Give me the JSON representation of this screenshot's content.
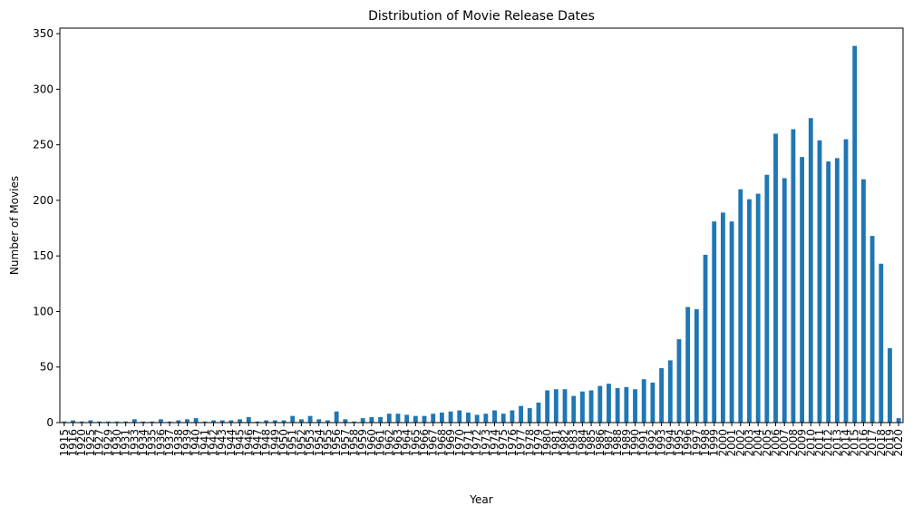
{
  "chart_data": {
    "type": "bar",
    "title": "Distribution of Movie Release Dates",
    "xlabel": "Year",
    "ylabel": "Number of Movies",
    "ylim": [
      0,
      355
    ],
    "yticks": [
      0,
      50,
      100,
      150,
      200,
      250,
      300,
      350
    ],
    "grid": false,
    "legend": "none",
    "bar_color": "#1f77b4",
    "categories": [
      "1915",
      "1916",
      "1920",
      "1925",
      "1927",
      "1929",
      "1930",
      "1931",
      "1933",
      "1934",
      "1935",
      "1936",
      "1937",
      "1938",
      "1939",
      "1940",
      "1941",
      "1942",
      "1943",
      "1944",
      "1945",
      "1946",
      "1947",
      "1948",
      "1949",
      "1950",
      "1951",
      "1952",
      "1953",
      "1954",
      "1955",
      "1956",
      "1957",
      "1958",
      "1959",
      "1960",
      "1961",
      "1962",
      "1963",
      "1964",
      "1965",
      "1966",
      "1967",
      "1968",
      "1969",
      "1970",
      "1971",
      "1972",
      "1973",
      "1974",
      "1975",
      "1976",
      "1977",
      "1978",
      "1979",
      "1980",
      "1981",
      "1982",
      "1983",
      "1984",
      "1985",
      "1986",
      "1987",
      "1988",
      "1989",
      "1990",
      "1991",
      "1992",
      "1993",
      "1994",
      "1995",
      "1996",
      "1997",
      "1998",
      "1999",
      "2000",
      "2001",
      "2002",
      "2003",
      "2004",
      "2005",
      "2006",
      "2007",
      "2008",
      "2009",
      "2010",
      "2011",
      "2012",
      "2013",
      "2014",
      "2015",
      "2016",
      "2017",
      "2018",
      "2019",
      "2020"
    ],
    "values": [
      1,
      2,
      1,
      2,
      1,
      1,
      1,
      1,
      3,
      1,
      1,
      3,
      1,
      2,
      3,
      4,
      1,
      2,
      2,
      2,
      3,
      5,
      1,
      2,
      2,
      2,
      6,
      3,
      6,
      3,
      2,
      10,
      3,
      1,
      4,
      5,
      5,
      8,
      8,
      7,
      6,
      6,
      8,
      9,
      10,
      11,
      9,
      7,
      8,
      11,
      8,
      11,
      15,
      13,
      18,
      29,
      30,
      30,
      24,
      28,
      29,
      33,
      35,
      31,
      32,
      30,
      39,
      36,
      49,
      56,
      75,
      104,
      102,
      151,
      181,
      189,
      181,
      210,
      201,
      206,
      223,
      260,
      220,
      264,
      239,
      274,
      254,
      235,
      238,
      255,
      339,
      219,
      168,
      143,
      67,
      4
    ]
  }
}
